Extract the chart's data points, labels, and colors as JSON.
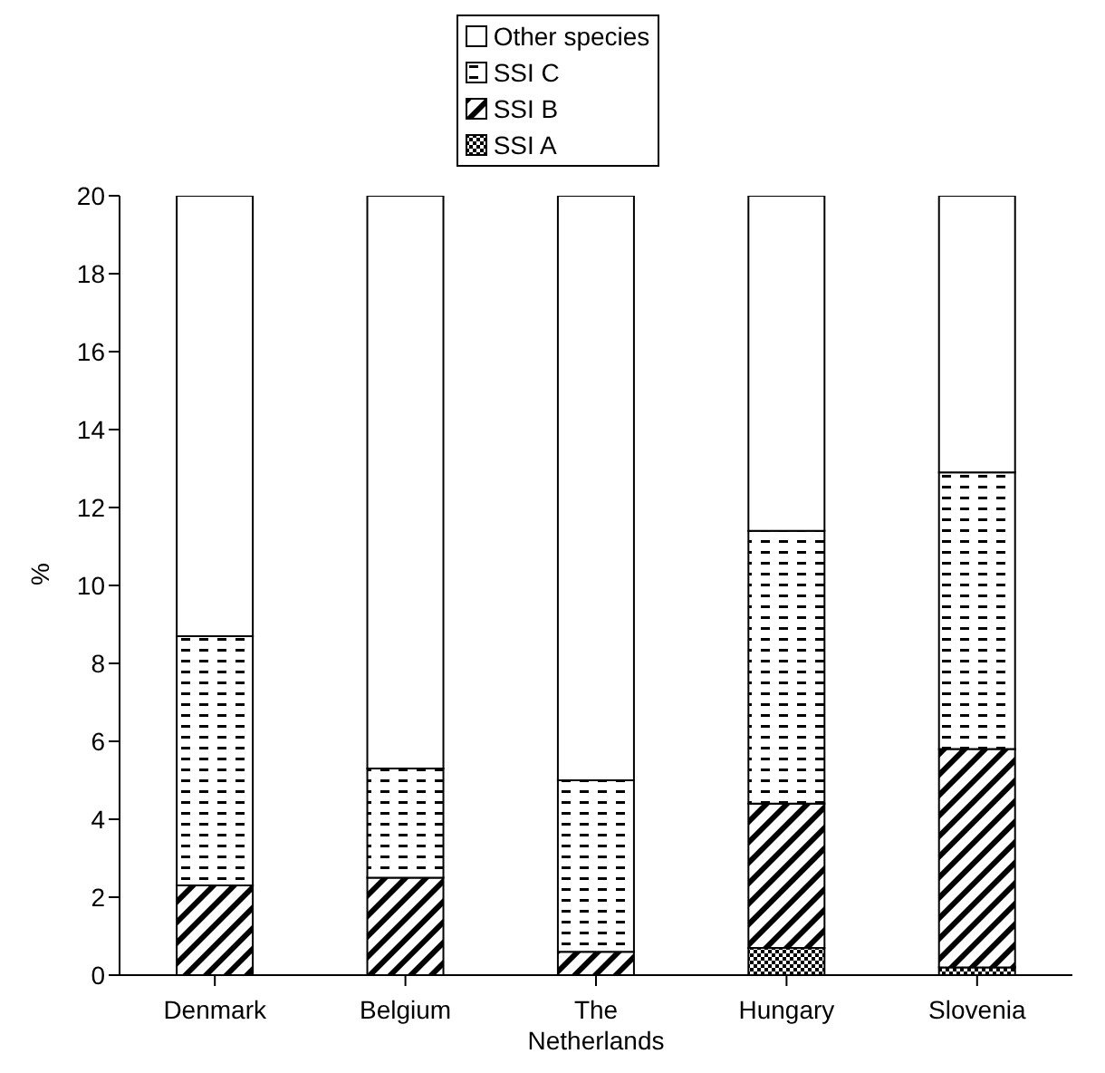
{
  "chart_data": {
    "type": "bar",
    "stacked": true,
    "ylabel": "%",
    "categories": [
      "Denmark",
      "Belgium",
      "The Netherlands",
      "Hungary",
      "Slovenia"
    ],
    "series": [
      {
        "name": "SSI A",
        "color": "#000000",
        "values": [
          0,
          0,
          0,
          0.7,
          0.2
        ]
      },
      {
        "name": "SSI B",
        "color": "#000000",
        "values": [
          2.3,
          2.5,
          0.6,
          3.7,
          5.6
        ]
      },
      {
        "name": "SSI C",
        "color": "#000000",
        "values": [
          6.4,
          2.8,
          4.4,
          7.0,
          7.1
        ]
      },
      {
        "name": "Other species",
        "color": "#000000",
        "values": [
          11.3,
          14.7,
          15.0,
          8.6,
          7.1
        ]
      }
    ],
    "ylim": [
      0,
      20
    ],
    "yticks": [
      0,
      2,
      4,
      6,
      8,
      10,
      12,
      14,
      16,
      18,
      20
    ],
    "grid": false,
    "legend": "top"
  }
}
